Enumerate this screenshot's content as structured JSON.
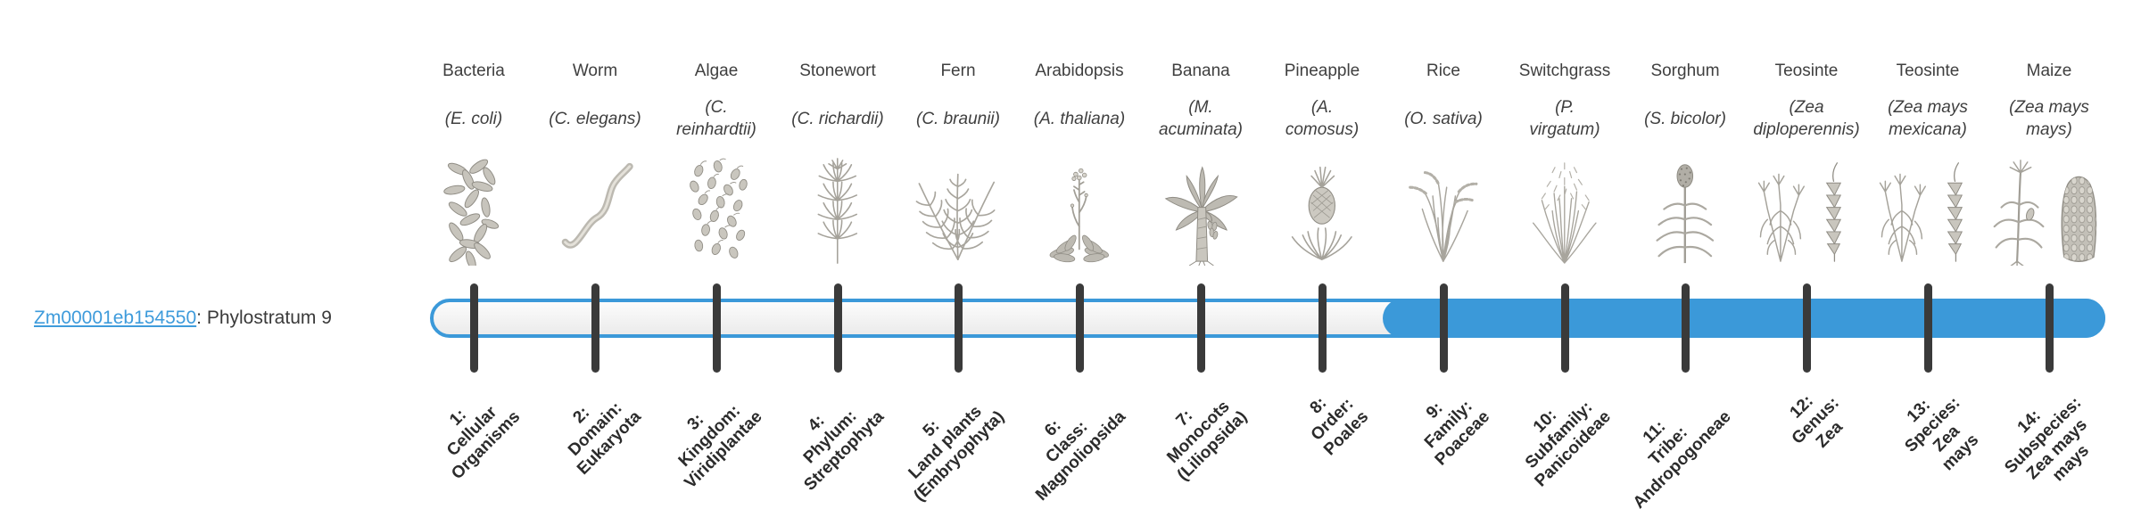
{
  "gene": {
    "id": "Zm00001eb154550",
    "suffix": ": Phylostratum 9"
  },
  "timeline": {
    "total_strata": 14,
    "highlight_from_stratum": 9,
    "track_color": "#3b99d9",
    "tick_color": "#3a3a3a",
    "link_color": "#3e9bdb"
  },
  "strata": [
    {
      "num": 1,
      "organism": "Bacteria",
      "species": "(E. coli)",
      "icon": "bacteria-icon",
      "rank_label": "1:\nCellular\nOrganisms",
      "highlighted": false
    },
    {
      "num": 2,
      "organism": "Worm",
      "species": "(C. elegans)",
      "icon": "worm-icon",
      "rank_label": "2:\nDomain:\nEukaryota",
      "highlighted": false
    },
    {
      "num": 3,
      "organism": "Algae",
      "species": "(C.\nreinhardtii)",
      "icon": "algae-icon",
      "rank_label": "3:\nKingdom:\nViridiplantae",
      "highlighted": false
    },
    {
      "num": 4,
      "organism": "Stonewort",
      "species": "(C. richardii)",
      "icon": "stonewort-icon",
      "rank_label": "4:\nPhylum:\nStreptophyta",
      "highlighted": false
    },
    {
      "num": 5,
      "organism": "Fern",
      "species": "(C. braunii)",
      "icon": "fern-icon",
      "rank_label": "5:\nLand plants\n(Embryophyta)",
      "highlighted": false
    },
    {
      "num": 6,
      "organism": "Arabidopsis",
      "species": "(A. thaliana)",
      "icon": "arabidopsis-icon",
      "rank_label": "6:\nClass:\nMagnoliopsida",
      "highlighted": false
    },
    {
      "num": 7,
      "organism": "Banana",
      "species": "(M.\nacuminata)",
      "icon": "banana-icon",
      "rank_label": "7:\nMonocots\n(Liliopsida)",
      "highlighted": false
    },
    {
      "num": 8,
      "organism": "Pineapple",
      "species": "(A.\ncomosus)",
      "icon": "pineapple-icon",
      "rank_label": "8:\nOrder:\nPoales",
      "highlighted": false
    },
    {
      "num": 9,
      "organism": "Rice",
      "species": "(O. sativa)",
      "icon": "rice-icon",
      "rank_label": "9:\nFamily:\nPoaceae",
      "highlighted": true
    },
    {
      "num": 10,
      "organism": "Switchgrass",
      "species": "(P.\nvirgatum)",
      "icon": "switchgrass-icon",
      "rank_label": "10:\nSubfamily:\nPanicoideae",
      "highlighted": true
    },
    {
      "num": 11,
      "organism": "Sorghum",
      "species": "(S. bicolor)",
      "icon": "sorghum-icon",
      "rank_label": "11:\nTribe:\nAndropogoneae",
      "highlighted": true
    },
    {
      "num": 12,
      "organism": "Teosinte",
      "species": "(Zea\ndiploperennis)",
      "icon": "teosinte-diploperennis-icon",
      "rank_label": "12:\nGenus:\nZea",
      "highlighted": true
    },
    {
      "num": 13,
      "organism": "Teosinte",
      "species": "(Zea mays\nmexicana)",
      "icon": "teosinte-mexicana-icon",
      "rank_label": "13:\nSpecies:\nZea\nmays",
      "highlighted": true
    },
    {
      "num": 14,
      "organism": "Maize",
      "species": "(Zea mays\nmays)",
      "icon": "maize-icon",
      "rank_label": "14:\nSubspecies:\nZea mays\nmays",
      "highlighted": true
    }
  ]
}
